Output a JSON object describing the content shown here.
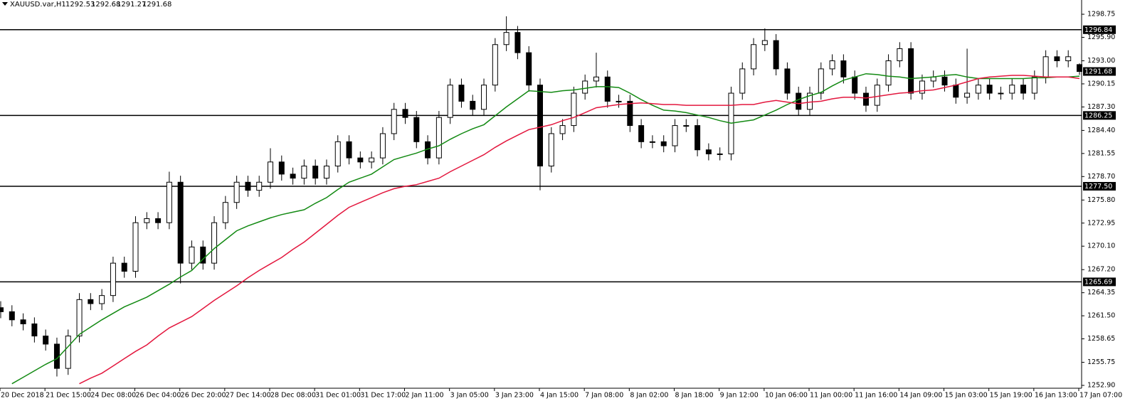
{
  "chart_data": {
    "type": "candlestick",
    "title": "XAUUSD.var,H1",
    "grid": false,
    "up_color": "#ffffff",
    "down_color": "#000000",
    "categories": [
      "20 Dec 2018",
      null,
      null,
      null,
      "21 Dec 15:00",
      null,
      null,
      null,
      "24 Dec 08:00",
      null,
      null,
      null,
      "26 Dec 04:00",
      null,
      null,
      null,
      "26 Dec 20:00",
      null,
      null,
      null,
      "27 Dec 14:00",
      null,
      null,
      null,
      "28 Dec 08:00",
      null,
      null,
      null,
      "31 Dec 01:00",
      null,
      null,
      null,
      "31 Dec 17:00",
      null,
      null,
      null,
      "2 Jan 11:00",
      null,
      null,
      null,
      "3 Jan 05:00",
      null,
      null,
      null,
      "3 Jan 23:00",
      null,
      null,
      null,
      "4 Jan 15:00",
      null,
      null,
      null,
      "7 Jan 08:00",
      null,
      null,
      null,
      "8 Jan 02:00",
      null,
      null,
      null,
      "8 Jan 18:00",
      null,
      null,
      null,
      "9 Jan 12:00",
      null,
      null,
      null,
      "10 Jan 06:00",
      null,
      null,
      null,
      "11 Jan 00:00",
      null,
      null,
      null,
      "11 Jan 16:00",
      null,
      null,
      null,
      "14 Jan 09:00",
      null,
      null,
      null,
      "15 Jan 03:00",
      null,
      null,
      null,
      "15 Jan 19:00",
      null,
      null,
      null,
      "16 Jan 13:00",
      null,
      null,
      null,
      "17 Jan 07:00"
    ],
    "open": [
      1262.5,
      1262,
      1261,
      1260.5,
      1259,
      1258,
      1255,
      1259,
      1263.5,
      1263,
      1264,
      1268,
      1267,
      1273,
      1273.5,
      1273,
      1278,
      1268,
      1270,
      1268,
      1273,
      1275.5,
      1278,
      1277,
      1278,
      1280.5,
      1279,
      1278.5,
      1280,
      1278.5,
      1280,
      1283,
      1281,
      1280.5,
      1281,
      1284,
      1287,
      1286,
      1283,
      1281,
      1286,
      1290,
      1288,
      1287,
      1290,
      1295,
      1296.5,
      1294,
      1290,
      1280,
      1284,
      1285,
      1289,
      1290.5,
      1291,
      1288,
      1288,
      1285,
      1283,
      1283,
      1282.5,
      1285,
      1285,
      1282,
      1281.5,
      1281.5,
      1289,
      1292,
      1295,
      1295.5,
      1292,
      1289,
      1287,
      1289,
      1292,
      1293,
      1291,
      1289,
      1287.5,
      1290,
      1293,
      1294.5,
      1289,
      1290.5,
      1291,
      1290,
      1288.5,
      1289,
      1290,
      1289,
      1289,
      1290,
      1289,
      1291,
      1293.5,
      1293,
      1292.53
    ],
    "high": [
      1263.3,
      1262.8,
      1261.8,
      1261.3,
      1259.8,
      1258.8,
      1259.8,
      1264.3,
      1264.3,
      1264.8,
      1268.8,
      1268.8,
      1273.8,
      1274.3,
      1274.3,
      1279.3,
      1278.8,
      1270.8,
      1270.8,
      1273.8,
      1276.3,
      1278.8,
      1278.8,
      1278.8,
      1282.2,
      1281.3,
      1279.8,
      1280.8,
      1280.8,
      1280.8,
      1283.8,
      1283.8,
      1281.8,
      1281.8,
      1284.8,
      1287.8,
      1287.8,
      1286.8,
      1283.8,
      1286.8,
      1290.8,
      1290.8,
      1288.8,
      1290.8,
      1295.8,
      1298.5,
      1297.3,
      1294.8,
      1290.8,
      1284.8,
      1285.8,
      1289.8,
      1291.3,
      1294,
      1291.8,
      1288.8,
      1288.8,
      1285.8,
      1283.8,
      1283.8,
      1285.8,
      1285.8,
      1285.8,
      1282.8,
      1282.3,
      1289.8,
      1292.8,
      1295.8,
      1297,
      1296.3,
      1292.8,
      1289.8,
      1289.8,
      1292.8,
      1293.8,
      1293.8,
      1291.8,
      1289.8,
      1290.8,
      1293.8,
      1295.3,
      1295.3,
      1291.3,
      1291.8,
      1291.8,
      1290.8,
      1294.5,
      1290.8,
      1290.8,
      1289.8,
      1290.8,
      1290.8,
      1291.8,
      1294.3,
      1294.3,
      1294.3,
      1292.68
    ],
    "low": [
      1261.2,
      1260.2,
      1259.7,
      1258.2,
      1257.2,
      1254,
      1254.2,
      1258.2,
      1262.2,
      1262.2,
      1263.2,
      1266.2,
      1266.2,
      1272.2,
      1272.2,
      1272.2,
      1265.5,
      1267.2,
      1267.2,
      1267.2,
      1272.2,
      1274.7,
      1276.2,
      1276.2,
      1277.2,
      1278.2,
      1277.7,
      1277.7,
      1277.7,
      1277.7,
      1279.2,
      1280.2,
      1279.7,
      1279.7,
      1280.2,
      1283.2,
      1285.2,
      1282.2,
      1280.2,
      1280.2,
      1285.2,
      1287.2,
      1286.2,
      1286.2,
      1289.2,
      1294.2,
      1293.2,
      1289.2,
      1277,
      1279.2,
      1283.2,
      1284.2,
      1288.2,
      1289.7,
      1287.2,
      1287.2,
      1284.2,
      1282.2,
      1282.2,
      1281.7,
      1281.7,
      1284.2,
      1281.2,
      1280.7,
      1280.7,
      1280.7,
      1288.2,
      1291.2,
      1294.2,
      1291.2,
      1288.2,
      1286.2,
      1286.2,
      1288.2,
      1291.2,
      1290.2,
      1288.2,
      1286.7,
      1286.7,
      1289.2,
      1292.2,
      1288.2,
      1288.2,
      1289.7,
      1289.2,
      1287.7,
      1287.7,
      1288.2,
      1288.2,
      1288.2,
      1288.2,
      1288.2,
      1288.2,
      1290.2,
      1292.2,
      1292.2,
      1291.27
    ],
    "close": [
      1262,
      1261,
      1260.5,
      1259,
      1258,
      1255,
      1259,
      1263.5,
      1263,
      1264,
      1268,
      1267,
      1273,
      1273.5,
      1273,
      1278,
      1268,
      1270,
      1268,
      1273,
      1275.5,
      1278,
      1277,
      1278,
      1280.5,
      1279,
      1278.5,
      1280,
      1278.5,
      1280,
      1283,
      1281,
      1280.5,
      1281,
      1284,
      1287,
      1286,
      1283,
      1281,
      1286,
      1290,
      1288,
      1287,
      1290,
      1295,
      1296.5,
      1294,
      1290,
      1280,
      1284,
      1285,
      1289,
      1290.5,
      1291,
      1288,
      1288,
      1285,
      1283,
      1283,
      1282.5,
      1285,
      1285,
      1282,
      1281.5,
      1281.5,
      1289,
      1292,
      1295,
      1295.5,
      1292,
      1289,
      1287,
      1289,
      1292,
      1293,
      1291,
      1289,
      1287.5,
      1290,
      1293,
      1294.5,
      1289,
      1290.5,
      1291,
      1290,
      1288.5,
      1289,
      1290,
      1289,
      1289,
      1290,
      1289,
      1291,
      1293.5,
      1293,
      1293.5,
      1291.68
    ],
    "series": [
      {
        "color": "#138a13",
        "values": [
          null,
          1253.1,
          1253.9,
          1254.7,
          1255.5,
          1256.2,
          1257.7,
          1259.2,
          1260.1,
          1261,
          1261.8,
          1262.6,
          1263.2,
          1263.8,
          1264.6,
          1265.4,
          1266.3,
          1267.1,
          1268.5,
          1269.8,
          1270.9,
          1272,
          1272.6,
          1273.1,
          1273.6,
          1274,
          1274.3,
          1274.6,
          1275.4,
          1276.1,
          1277.1,
          1278,
          1278.5,
          1279,
          1279.9,
          1280.8,
          1281.2,
          1281.6,
          1282.1,
          1282.5,
          1283.3,
          1284,
          1284.6,
          1285.1,
          1286.2,
          1287.3,
          1288.3,
          1289.3,
          1289.2,
          1289.1,
          1289.3,
          1289.4,
          1289.6,
          1289.8,
          1289.8,
          1289.7,
          1289,
          1288.2,
          1287.5,
          1286.9,
          1286.8,
          1286.6,
          1286.3,
          1286,
          1285.6,
          1285.3,
          1285.5,
          1285.7,
          1286.3,
          1286.9,
          1287.6,
          1288.2,
          1288.7,
          1289.1,
          1289.9,
          1290.6,
          1291,
          1291.4,
          1291.3,
          1291.1,
          1291,
          1290.8,
          1290.9,
          1291,
          1291.2,
          1291.3,
          1291,
          1290.8,
          1290.8,
          1290.8,
          1290.8,
          1290.8,
          1290.9,
          1290.9,
          1291,
          1291,
          1291.1
        ]
      },
      {
        "color": "#e3173e",
        "values": [
          null,
          null,
          null,
          null,
          null,
          null,
          null,
          1253.1,
          1253.8,
          1254.4,
          1255.3,
          1256.2,
          1257.1,
          1257.9,
          1259,
          1260,
          1260.7,
          1261.4,
          1262.4,
          1263.4,
          1264.3,
          1265.2,
          1266.2,
          1267.1,
          1267.9,
          1268.7,
          1269.7,
          1270.6,
          1271.7,
          1272.8,
          1273.9,
          1274.9,
          1275.5,
          1276.1,
          1276.7,
          1277.2,
          1277.5,
          1277.7,
          1278.1,
          1278.5,
          1279.3,
          1280,
          1280.7,
          1281.4,
          1282.3,
          1283.1,
          1283.8,
          1284.5,
          1284.8,
          1285.1,
          1285.6,
          1286,
          1286.6,
          1287.2,
          1287.4,
          1287.6,
          1287.7,
          1287.8,
          1287.7,
          1287.6,
          1287.6,
          1287.5,
          1287.5,
          1287.5,
          1287.5,
          1287.5,
          1287.6,
          1287.6,
          1287.9,
          1288.1,
          1287.9,
          1287.7,
          1287.9,
          1288,
          1288.3,
          1288.5,
          1288.5,
          1288.4,
          1288.6,
          1288.8,
          1289,
          1289.1,
          1289.3,
          1289.4,
          1289.7,
          1290,
          1290.4,
          1290.8,
          1291,
          1291.1,
          1291.2,
          1291.2,
          1291.1,
          1291,
          1291,
          1291,
          1290.8
        ]
      }
    ],
    "levels": [
      1296.84,
      1286.25,
      {
        "value": 1277.5,
        "label": "1277.50"
      },
      1265.69
    ],
    "ylim": [
      1252.55,
      1300.51
    ],
    "yticks": [
      1298.75,
      {
        "value": 1295.9,
        "label": "1295.90"
      },
      {
        "value": 1293,
        "label": "1293.00"
      },
      1290.15,
      {
        "value": 1287.3,
        "label": "1287.30"
      },
      {
        "value": 1284.4,
        "label": "1284.40"
      },
      1281.55,
      {
        "value": 1278.7,
        "label": "1278.70"
      },
      {
        "value": 1275.8,
        "label": "1275.80"
      },
      1272.95,
      {
        "value": 1270.1,
        "label": "1270.10"
      },
      {
        "value": 1267.2,
        "label": "1267.20"
      },
      1264.35,
      {
        "value": 1261.5,
        "label": "1261.50"
      },
      1258.65,
      1255.75,
      {
        "value": 1252.9,
        "label": "1252.90"
      }
    ]
  }
}
